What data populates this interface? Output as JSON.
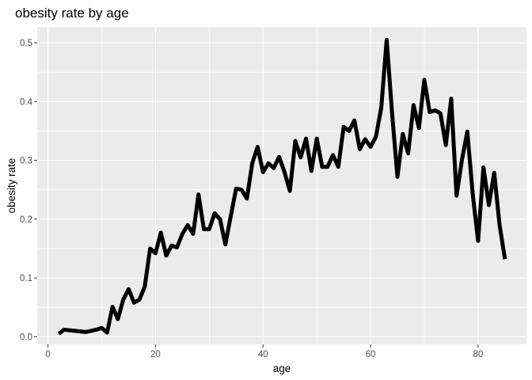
{
  "chart_data": {
    "type": "line",
    "title": "obesity rate by age",
    "xlabel": "age",
    "ylabel": "obesity rate",
    "xlim": [
      -2,
      89
    ],
    "ylim": [
      -0.013,
      0.527
    ],
    "x_ticks": [
      0,
      20,
      40,
      60,
      80
    ],
    "y_ticks": [
      0.0,
      0.1,
      0.2,
      0.3,
      0.4,
      0.5
    ],
    "x_tick_labels": [
      "0",
      "20",
      "40",
      "60",
      "80"
    ],
    "y_tick_labels": [
      "0.0",
      "0.1",
      "0.2",
      "0.3",
      "0.4",
      "0.5"
    ],
    "grid": true,
    "background_color": "#ebebeb",
    "grid_color": "#ffffff",
    "line_color": "#000000",
    "series": [
      {
        "x": [
          2,
          3,
          4,
          5,
          6,
          7,
          8,
          9,
          10,
          11,
          12,
          13,
          14,
          15,
          16,
          17,
          18,
          19,
          20,
          21,
          22,
          23,
          24,
          25,
          26,
          27,
          28,
          29,
          30,
          31,
          32,
          33,
          34,
          35,
          36,
          37,
          38,
          39,
          40,
          41,
          42,
          43,
          44,
          45,
          46,
          47,
          48,
          49,
          50,
          51,
          52,
          53,
          54,
          55,
          56,
          57,
          58,
          59,
          60,
          61,
          62,
          63,
          64,
          65,
          66,
          67,
          68,
          69,
          70,
          71,
          72,
          73,
          74,
          75,
          76,
          77,
          78,
          79,
          80,
          81,
          82,
          83,
          84,
          85
        ],
        "y": [
          0.005,
          0.012,
          0.011,
          0.01,
          0.009,
          0.008,
          0.01,
          0.012,
          0.015,
          0.007,
          0.051,
          0.03,
          0.063,
          0.081,
          0.058,
          0.063,
          0.085,
          0.15,
          0.142,
          0.177,
          0.138,
          0.155,
          0.152,
          0.175,
          0.19,
          0.175,
          0.242,
          0.183,
          0.183,
          0.21,
          0.2,
          0.157,
          0.205,
          0.252,
          0.25,
          0.235,
          0.295,
          0.323,
          0.28,
          0.295,
          0.287,
          0.306,
          0.28,
          0.248,
          0.333,
          0.305,
          0.337,
          0.282,
          0.337,
          0.289,
          0.289,
          0.309,
          0.289,
          0.357,
          0.35,
          0.368,
          0.319,
          0.336,
          0.323,
          0.34,
          0.39,
          0.505,
          0.381,
          0.272,
          0.345,
          0.312,
          0.394,
          0.355,
          0.437,
          0.382,
          0.385,
          0.38,
          0.326,
          0.405,
          0.24,
          0.301,
          0.349,
          0.243,
          0.163,
          0.288,
          0.224,
          0.279,
          0.19,
          0.132
        ]
      }
    ]
  }
}
